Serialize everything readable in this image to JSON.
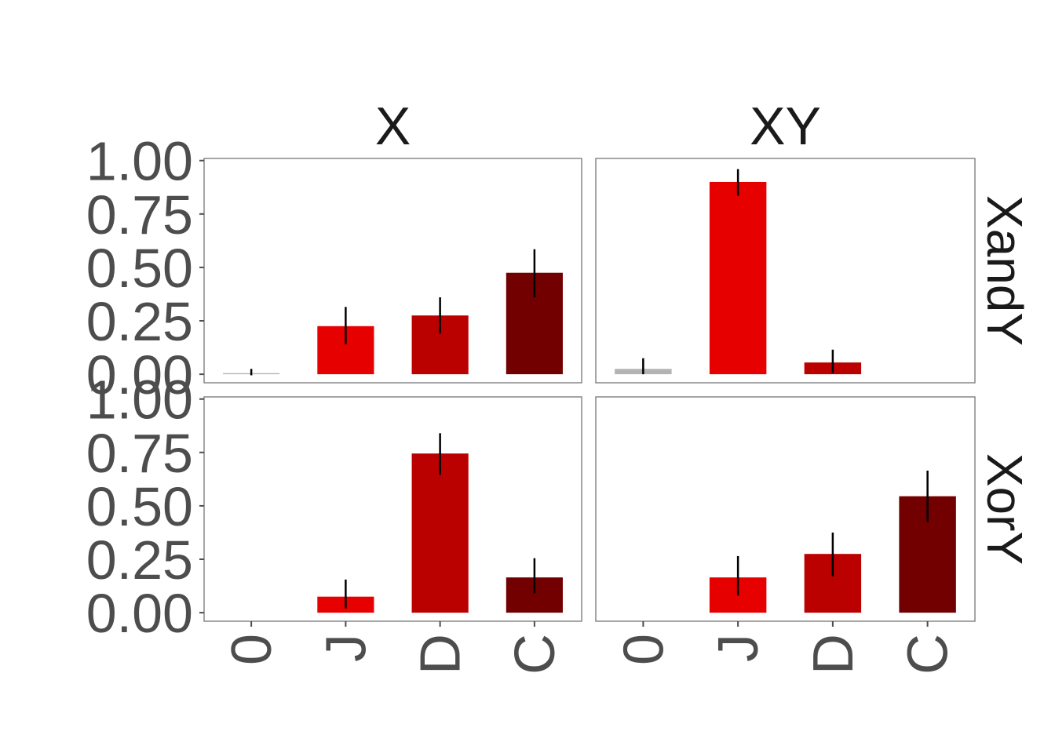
{
  "chart_data": {
    "type": "bar",
    "title": "",
    "xlabel": "",
    "ylabel": "",
    "ylim": [
      -0.04,
      1.01
    ],
    "yticks": [
      "0.00",
      "0.25",
      "0.50",
      "0.75",
      "1.00"
    ],
    "categories": [
      "0",
      "J",
      "D",
      "C"
    ],
    "facet_cols": [
      "X",
      "XY"
    ],
    "facet_rows": [
      "XandY",
      "XorY"
    ],
    "colors": {
      "0": "#b3b3b3",
      "J": "#e60000",
      "D": "#bb0000",
      "C": "#730000"
    },
    "grid": false,
    "legend": "none",
    "panels": [
      {
        "col": "X",
        "row": "XandY",
        "values": [
          0.005,
          0.225,
          0.275,
          0.475
        ],
        "err_low": [
          -0.005,
          0.14,
          0.19,
          0.36
        ],
        "err_high": [
          0.025,
          0.315,
          0.36,
          0.585
        ]
      },
      {
        "col": "XY",
        "row": "XandY",
        "values": [
          0.025,
          0.9,
          0.055,
          0.0
        ],
        "err_low": [
          0.0,
          0.835,
          0.005,
          0.0
        ],
        "err_high": [
          0.075,
          0.96,
          0.115,
          0.0
        ]
      },
      {
        "col": "X",
        "row": "XorY",
        "values": [
          0.0,
          0.075,
          0.745,
          0.165
        ],
        "err_low": [
          0.0,
          0.02,
          0.645,
          0.09
        ],
        "err_high": [
          0.0,
          0.155,
          0.84,
          0.255
        ]
      },
      {
        "col": "XY",
        "row": "XorY",
        "values": [
          0.0,
          0.165,
          0.275,
          0.545
        ],
        "err_low": [
          0.0,
          0.08,
          0.17,
          0.425
        ],
        "err_high": [
          0.0,
          0.265,
          0.375,
          0.665
        ]
      }
    ]
  }
}
